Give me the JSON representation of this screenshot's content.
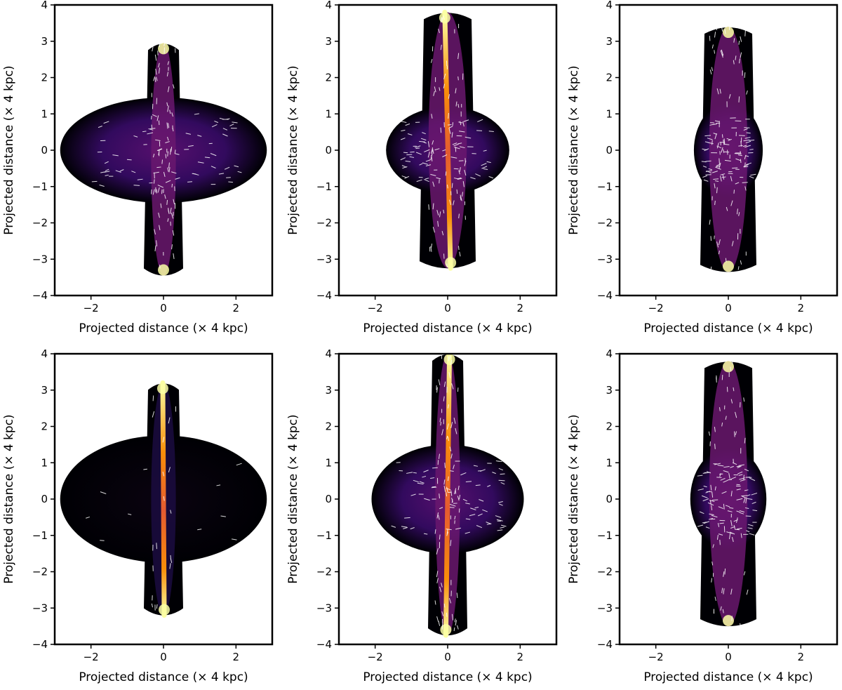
{
  "chart_data": {
    "type": "image-grid",
    "rows": 2,
    "cols": 3,
    "xlabel": "Projected distance (× 4 kpc)",
    "ylabel": "Projected distance (× 4 kpc)",
    "xlim": [
      -3,
      3
    ],
    "ylim": [
      -4,
      4
    ],
    "xticks": [
      -2,
      0,
      2
    ],
    "yticks": [
      -4,
      -3,
      -2,
      -1,
      0,
      1,
      2,
      3,
      4
    ],
    "xtick_labels": [
      "−2",
      "0",
      "2"
    ],
    "ytick_labels": [
      "−4",
      "−3",
      "−2",
      "−1",
      "0",
      "1",
      "2",
      "3",
      "4"
    ],
    "colormap": "inferno",
    "background_color": "#ffffff",
    "vector_color": "#ffffff",
    "panels": [
      {
        "row": 0,
        "col": 0,
        "jet_top": 2.95,
        "jet_bottom": -3.45,
        "jet_tilt": 0.0,
        "lobe_halfwidth": 2.85,
        "lobe_halfheight": 1.45,
        "brightness": 0.55
      },
      {
        "row": 0,
        "col": 1,
        "jet_top": 3.8,
        "jet_bottom": -3.25,
        "jet_tilt": 0.08,
        "lobe_halfwidth": 1.7,
        "lobe_halfheight": 1.2,
        "brightness": 0.7
      },
      {
        "row": 0,
        "col": 2,
        "jet_top": 3.4,
        "jet_bottom": -3.35,
        "jet_tilt": 0.0,
        "lobe_halfwidth": 0.95,
        "lobe_halfheight": 1.3,
        "brightness": 0.8
      },
      {
        "row": 1,
        "col": 0,
        "jet_top": 3.2,
        "jet_bottom": -3.2,
        "jet_tilt": 0.02,
        "lobe_halfwidth": 2.85,
        "lobe_halfheight": 1.75,
        "brightness": 0.15
      },
      {
        "row": 1,
        "col": 1,
        "jet_top": 4.0,
        "jet_bottom": -3.75,
        "jet_tilt": -0.05,
        "lobe_halfwidth": 2.1,
        "lobe_halfheight": 1.5,
        "brightness": 0.65
      },
      {
        "row": 1,
        "col": 2,
        "jet_top": 3.8,
        "jet_bottom": -3.5,
        "jet_tilt": 0.0,
        "lobe_halfwidth": 1.05,
        "lobe_halfheight": 1.4,
        "brightness": 0.75
      }
    ]
  }
}
